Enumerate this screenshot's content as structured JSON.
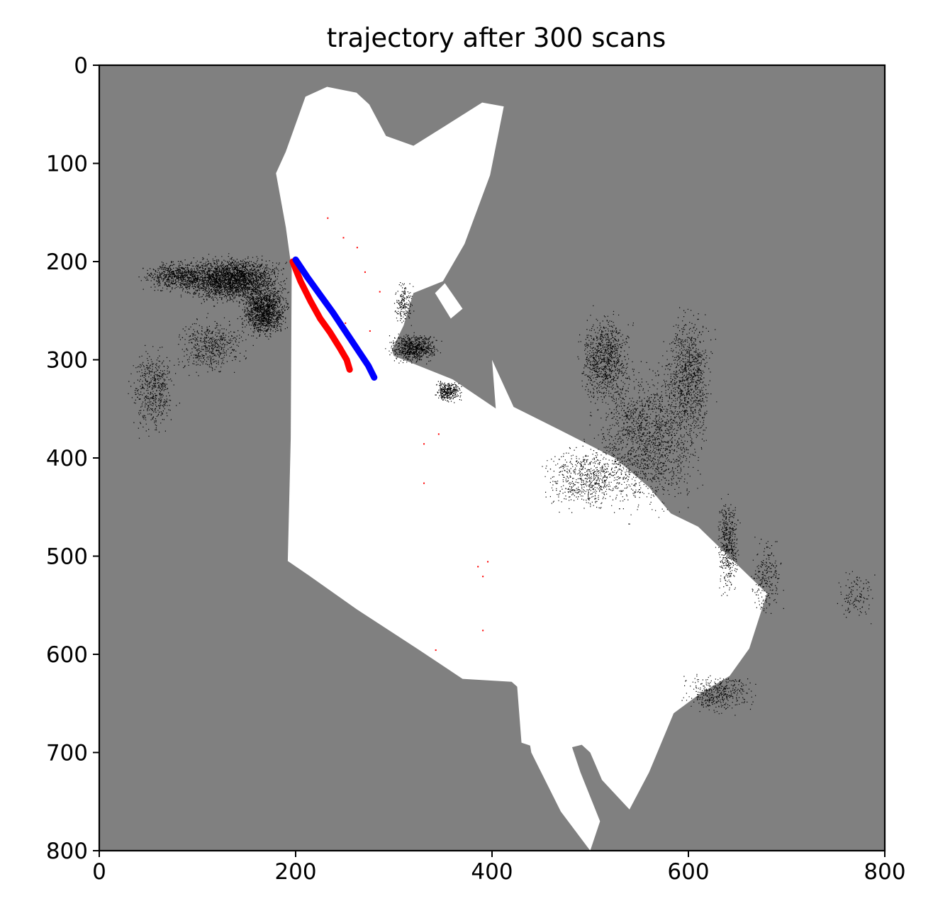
{
  "chart_data": {
    "type": "image-map",
    "title": "trajectory after 300 scans",
    "xlabel": "",
    "ylabel": "",
    "xlim": [
      0,
      800
    ],
    "ylim": [
      800,
      0
    ],
    "y_axis_inverted": true,
    "xticks": [
      0,
      200,
      400,
      600,
      800
    ],
    "yticks": [
      0,
      100,
      200,
      300,
      400,
      500,
      600,
      700,
      800
    ],
    "grid": false,
    "legend": "none",
    "colors": {
      "unknown_background": "#808080",
      "free_space": "#ffffff",
      "obstacles": "#000000",
      "trajectory_red": "#ff0000",
      "trajectory_blue": "#0000ff"
    },
    "free_space_polygons": [
      [
        [
          196,
          208
        ],
        [
          190,
          165
        ],
        [
          180,
          110
        ],
        [
          190,
          88
        ],
        [
          210,
          32
        ],
        [
          232,
          22
        ],
        [
          262,
          28
        ],
        [
          275,
          40
        ],
        [
          292,
          72
        ],
        [
          320,
          82
        ],
        [
          352,
          62
        ],
        [
          390,
          38
        ],
        [
          412,
          42
        ],
        [
          398,
          112
        ],
        [
          372,
          182
        ],
        [
          350,
          220
        ],
        [
          320,
          232
        ],
        [
          310,
          265
        ],
        [
          298,
          290
        ],
        [
          300,
          296
        ],
        [
          360,
          320
        ],
        [
          440,
          374
        ],
        [
          540,
          436
        ],
        [
          610,
          470
        ],
        [
          680,
          538
        ],
        [
          662,
          594
        ],
        [
          642,
          622
        ],
        [
          612,
          640
        ],
        [
          585,
          660
        ],
        [
          560,
          720
        ],
        [
          540,
          758
        ],
        [
          512,
          728
        ],
        [
          500,
          700
        ],
        [
          465,
          668
        ],
        [
          420,
          628
        ],
        [
          370,
          625
        ],
        [
          325,
          595
        ],
        [
          262,
          554
        ],
        [
          214,
          520
        ],
        [
          192,
          505
        ],
        [
          195,
          380
        ],
        [
          196,
          208
        ]
      ],
      [
        [
          400,
          300
        ],
        [
          422,
          348
        ],
        [
          470,
          372
        ],
        [
          525,
          400
        ],
        [
          560,
          430
        ],
        [
          600,
          478
        ],
        [
          640,
          520
        ],
        [
          670,
          560
        ],
        [
          655,
          590
        ],
        [
          610,
          610
        ],
        [
          580,
          640
        ],
        [
          548,
          670
        ],
        [
          500,
          690
        ],
        [
          460,
          700
        ],
        [
          430,
          690
        ],
        [
          400,
          300
        ]
      ],
      [
        [
          430,
          640
        ],
        [
          440,
          700
        ],
        [
          470,
          760
        ],
        [
          500,
          800
        ],
        [
          510,
          770
        ],
        [
          490,
          720
        ],
        [
          470,
          660
        ]
      ],
      [
        [
          342,
          232
        ],
        [
          352,
          222
        ],
        [
          370,
          248
        ],
        [
          358,
          258
        ]
      ]
    ],
    "obstacle_clusters": [
      {
        "cx": 135,
        "cy": 218,
        "rx": 62,
        "ry": 28,
        "n": 2600
      },
      {
        "cx": 168,
        "cy": 250,
        "rx": 30,
        "ry": 32,
        "n": 1300
      },
      {
        "cx": 80,
        "cy": 215,
        "rx": 42,
        "ry": 20,
        "n": 700
      },
      {
        "cx": 55,
        "cy": 330,
        "rx": 28,
        "ry": 55,
        "n": 500
      },
      {
        "cx": 115,
        "cy": 285,
        "rx": 45,
        "ry": 35,
        "n": 500
      },
      {
        "cx": 320,
        "cy": 288,
        "rx": 32,
        "ry": 18,
        "n": 700
      },
      {
        "cx": 355,
        "cy": 332,
        "rx": 16,
        "ry": 13,
        "n": 350
      },
      {
        "cx": 310,
        "cy": 242,
        "rx": 12,
        "ry": 28,
        "n": 180
      },
      {
        "cx": 515,
        "cy": 300,
        "rx": 32,
        "ry": 60,
        "n": 900
      },
      {
        "cx": 560,
        "cy": 380,
        "rx": 70,
        "ry": 90,
        "n": 1600
      },
      {
        "cx": 600,
        "cy": 320,
        "rx": 30,
        "ry": 90,
        "n": 900
      },
      {
        "cx": 500,
        "cy": 420,
        "rx": 60,
        "ry": 40,
        "n": 700
      },
      {
        "cx": 640,
        "cy": 490,
        "rx": 14,
        "ry": 60,
        "n": 450
      },
      {
        "cx": 630,
        "cy": 640,
        "rx": 45,
        "ry": 25,
        "n": 400
      },
      {
        "cx": 680,
        "cy": 520,
        "rx": 20,
        "ry": 50,
        "n": 220
      },
      {
        "cx": 770,
        "cy": 540,
        "rx": 25,
        "ry": 35,
        "n": 120
      }
    ],
    "red_noise_points": [
      [
        232,
        155
      ],
      [
        248,
        175
      ],
      [
        262,
        185
      ],
      [
        270,
        210
      ],
      [
        285,
        230
      ],
      [
        232,
        240
      ],
      [
        250,
        262
      ],
      [
        275,
        270
      ],
      [
        330,
        425
      ],
      [
        330,
        385
      ],
      [
        345,
        375
      ],
      [
        342,
        595
      ],
      [
        390,
        520
      ],
      [
        385,
        510
      ],
      [
        395,
        505
      ],
      [
        390,
        575
      ]
    ],
    "trajectory_red": [
      [
        197,
        200
      ],
      [
        205,
        220
      ],
      [
        215,
        240
      ],
      [
        225,
        258
      ],
      [
        235,
        272
      ],
      [
        245,
        288
      ],
      [
        252,
        300
      ],
      [
        255,
        310
      ]
    ],
    "trajectory_blue": [
      [
        200,
        198
      ],
      [
        212,
        216
      ],
      [
        225,
        234
      ],
      [
        238,
        252
      ],
      [
        250,
        270
      ],
      [
        262,
        288
      ],
      [
        274,
        306
      ],
      [
        280,
        318
      ]
    ]
  }
}
